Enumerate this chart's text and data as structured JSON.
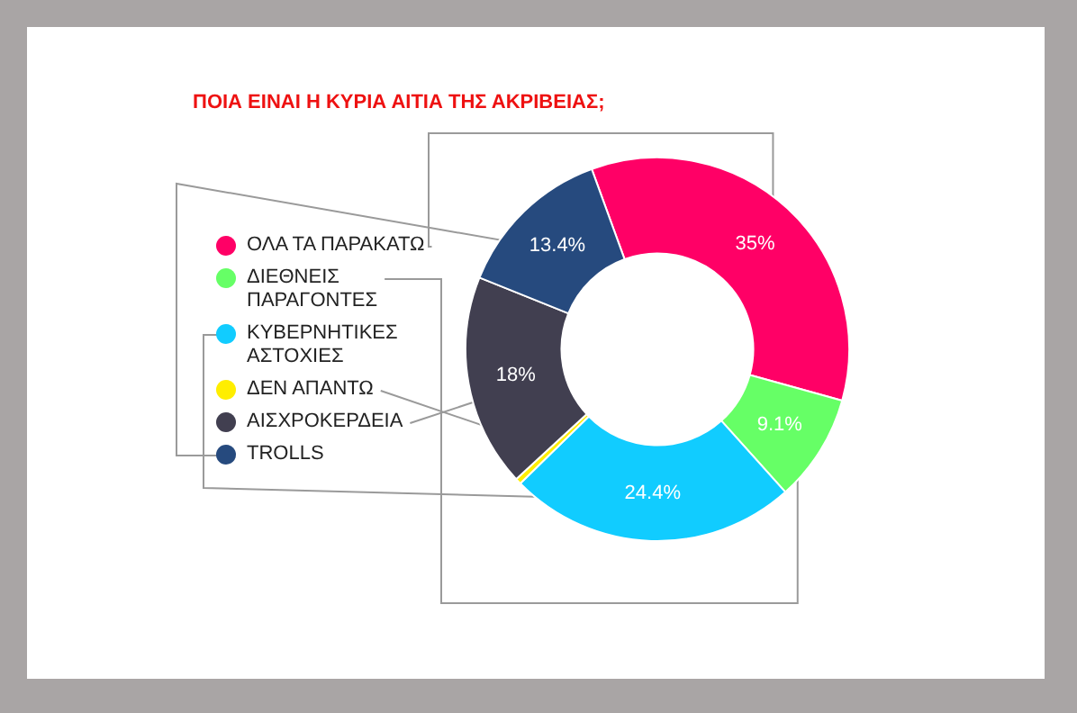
{
  "chart_data": {
    "type": "donut",
    "title": "ΠΟΙΑ ΕΙΝΑΙ Η ΚΥΡΙΑ ΑΙΤΙΑ ΤΗΣ ΑΚΡΙΒΕΙΑΣ;",
    "categories": [
      "ΟΛΑ ΤΑ ΠΑΡΑΚΑΤΩ",
      "ΔΙΕΘΝΕΙΣ ΠΑΡΑΓΟΝΤΕΣ",
      "ΚΥΒΕΡΝΗΤΙΚΕΣ ΑΣΤΟΧΙΕΣ",
      "ΔΕΝ ΑΠΑΝΤΩ",
      "ΑΙΣΧΡΟΚΕΡΔΕΙΑ",
      "TROLLS"
    ],
    "values": [
      35,
      9.1,
      24.4,
      0.5,
      18,
      13.4
    ],
    "colors": [
      "#ff0066",
      "#66ff66",
      "#11ccff",
      "#ffee00",
      "#413f50",
      "#264a7e"
    ],
    "value_labels": [
      "35%",
      "9.1%",
      "24.4%",
      null,
      "18%",
      "13.4%"
    ],
    "legend": "left"
  }
}
